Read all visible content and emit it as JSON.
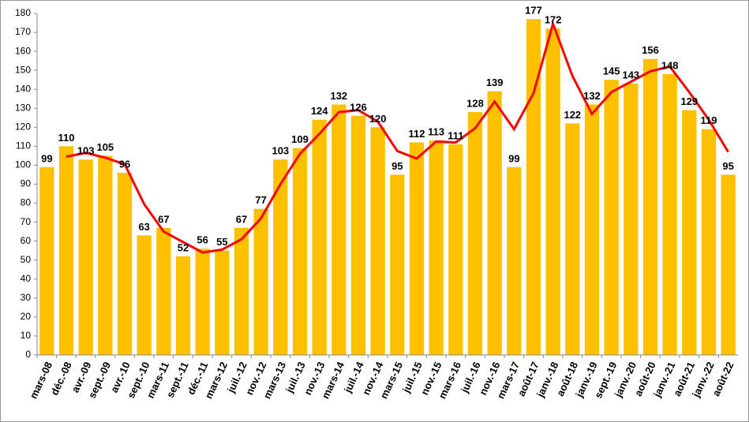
{
  "chart_data": {
    "type": "bar",
    "categories": [
      "mars-08",
      "déc.-08",
      "avr.-09",
      "sept.-09",
      "avr.-10",
      "sept.-10",
      "mars-11",
      "sept.-11",
      "déc.-11",
      "mars-12",
      "juil.-12",
      "nov.-12",
      "mars-13",
      "juil.-13",
      "nov.-13",
      "mars-14",
      "juil.-14",
      "nov.-14",
      "mars-15",
      "juil.-15",
      "nov.-15",
      "mars-16",
      "juil.-16",
      "nov.-16",
      "mars-17",
      "août-17",
      "janv.-18",
      "août-18",
      "janv.-19",
      "sept.-19",
      "janv.-20",
      "août-20",
      "janv.-21",
      "août-21",
      "janv.-22",
      "août-22"
    ],
    "values": [
      99,
      110,
      103,
      105,
      96,
      63,
      67,
      52,
      56,
      55,
      67,
      77,
      103,
      109,
      124,
      132,
      126,
      120,
      95,
      112,
      113,
      111,
      128,
      139,
      99,
      177,
      172,
      122,
      132,
      145,
      143,
      156,
      148,
      129,
      119,
      95
    ],
    "color": "#ffc000",
    "line": {
      "color": "#ff0000",
      "values": [
        null,
        104.5,
        106.5,
        104,
        100.5,
        79.5,
        65,
        59.5,
        54,
        55.5,
        61,
        72,
        90,
        106,
        116.5,
        128,
        129,
        123,
        107.5,
        103.5,
        112.5,
        112,
        119.5,
        133.5,
        119,
        138,
        174.5,
        147,
        127,
        138.5,
        144,
        149.5,
        152,
        138.5,
        124,
        107
      ]
    },
    "ylim": [
      0,
      180
    ],
    "yticks": [
      0,
      10,
      20,
      30,
      40,
      50,
      60,
      70,
      80,
      90,
      100,
      110,
      120,
      130,
      140,
      150,
      160,
      170,
      180
    ],
    "grid": false
  }
}
